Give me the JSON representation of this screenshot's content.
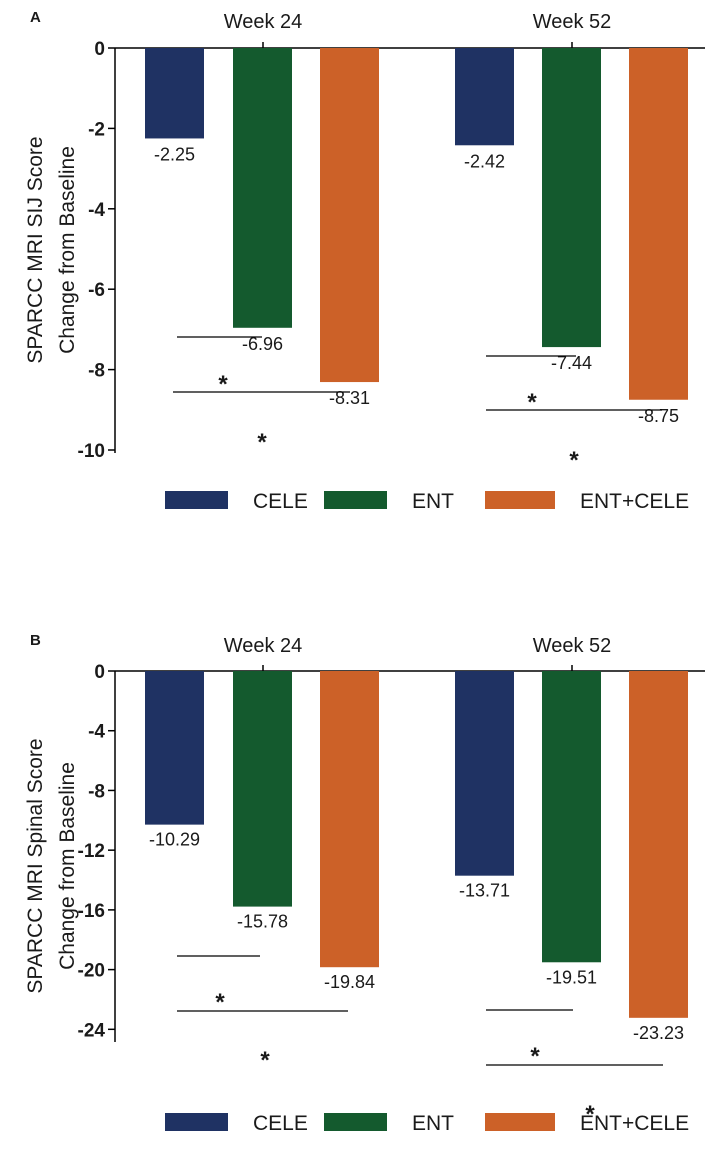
{
  "colors": {
    "CELE": "#1f3263",
    "ENT": "#145a2e",
    "ENT+CELE": "#cc6128",
    "axis": "#000000",
    "text": "#1a1a1a"
  },
  "chart_data": [
    {
      "panel_label": "A",
      "type": "bar",
      "categories": [
        "Week 24",
        "Week 52"
      ],
      "series": [
        {
          "name": "CELE",
          "values": [
            -2.25,
            -2.42
          ]
        },
        {
          "name": "ENT",
          "values": [
            -6.96,
            -7.44
          ]
        },
        {
          "name": "ENT+CELE",
          "values": [
            -8.31,
            -8.75
          ]
        }
      ],
      "value_labels": [
        [
          "-2.25",
          "-6.96",
          "-8.31"
        ],
        [
          "-2.42",
          "-7.44",
          "-8.75"
        ]
      ],
      "ylabel": [
        "SPARCC MRI SIJ Score",
        "Change from Baseline"
      ],
      "ylim": [
        -10,
        0
      ],
      "yticks": [
        "0",
        "-2",
        "-4",
        "-6",
        "-8",
        "-10"
      ],
      "significance": [
        {
          "group": "Week 24",
          "from": "CELE",
          "to": "ENT",
          "label": "*"
        },
        {
          "group": "Week 24",
          "from": "CELE",
          "to": "ENT+CELE",
          "label": "*"
        },
        {
          "group": "Week 52",
          "from": "CELE",
          "to": "ENT",
          "label": "*"
        },
        {
          "group": "Week 52",
          "from": "CELE",
          "to": "ENT+CELE",
          "label": "*"
        }
      ],
      "legend": "bottom",
      "grid": false
    },
    {
      "panel_label": "B",
      "type": "bar",
      "categories": [
        "Week 24",
        "Week 52"
      ],
      "series": [
        {
          "name": "CELE",
          "values": [
            -10.29,
            -13.71
          ]
        },
        {
          "name": "ENT",
          "values": [
            -15.78,
            -19.51
          ]
        },
        {
          "name": "ENT+CELE",
          "values": [
            -19.84,
            -23.23
          ]
        }
      ],
      "value_labels": [
        [
          "-10.29",
          "-15.78",
          "-19.84"
        ],
        [
          "-13.71",
          "-19.51",
          "-23.23"
        ]
      ],
      "ylabel": [
        "SPARCC MRI Spinal Score",
        "Change from Baseline"
      ],
      "ylim": [
        -25,
        0
      ],
      "yticks": [
        "0",
        "-4",
        "-8",
        "-12",
        "-16",
        "-20",
        "-24"
      ],
      "significance": [
        {
          "group": "Week 24",
          "from": "CELE",
          "to": "ENT",
          "label": "*"
        },
        {
          "group": "Week 24",
          "from": "CELE",
          "to": "ENT+CELE",
          "label": "*"
        },
        {
          "group": "Week 52",
          "from": "CELE",
          "to": "ENT",
          "label": "*"
        },
        {
          "group": "Week 52",
          "from": "CELE",
          "to": "ENT+CELE",
          "label": "*"
        }
      ],
      "legend": "bottom",
      "grid": false
    }
  ]
}
